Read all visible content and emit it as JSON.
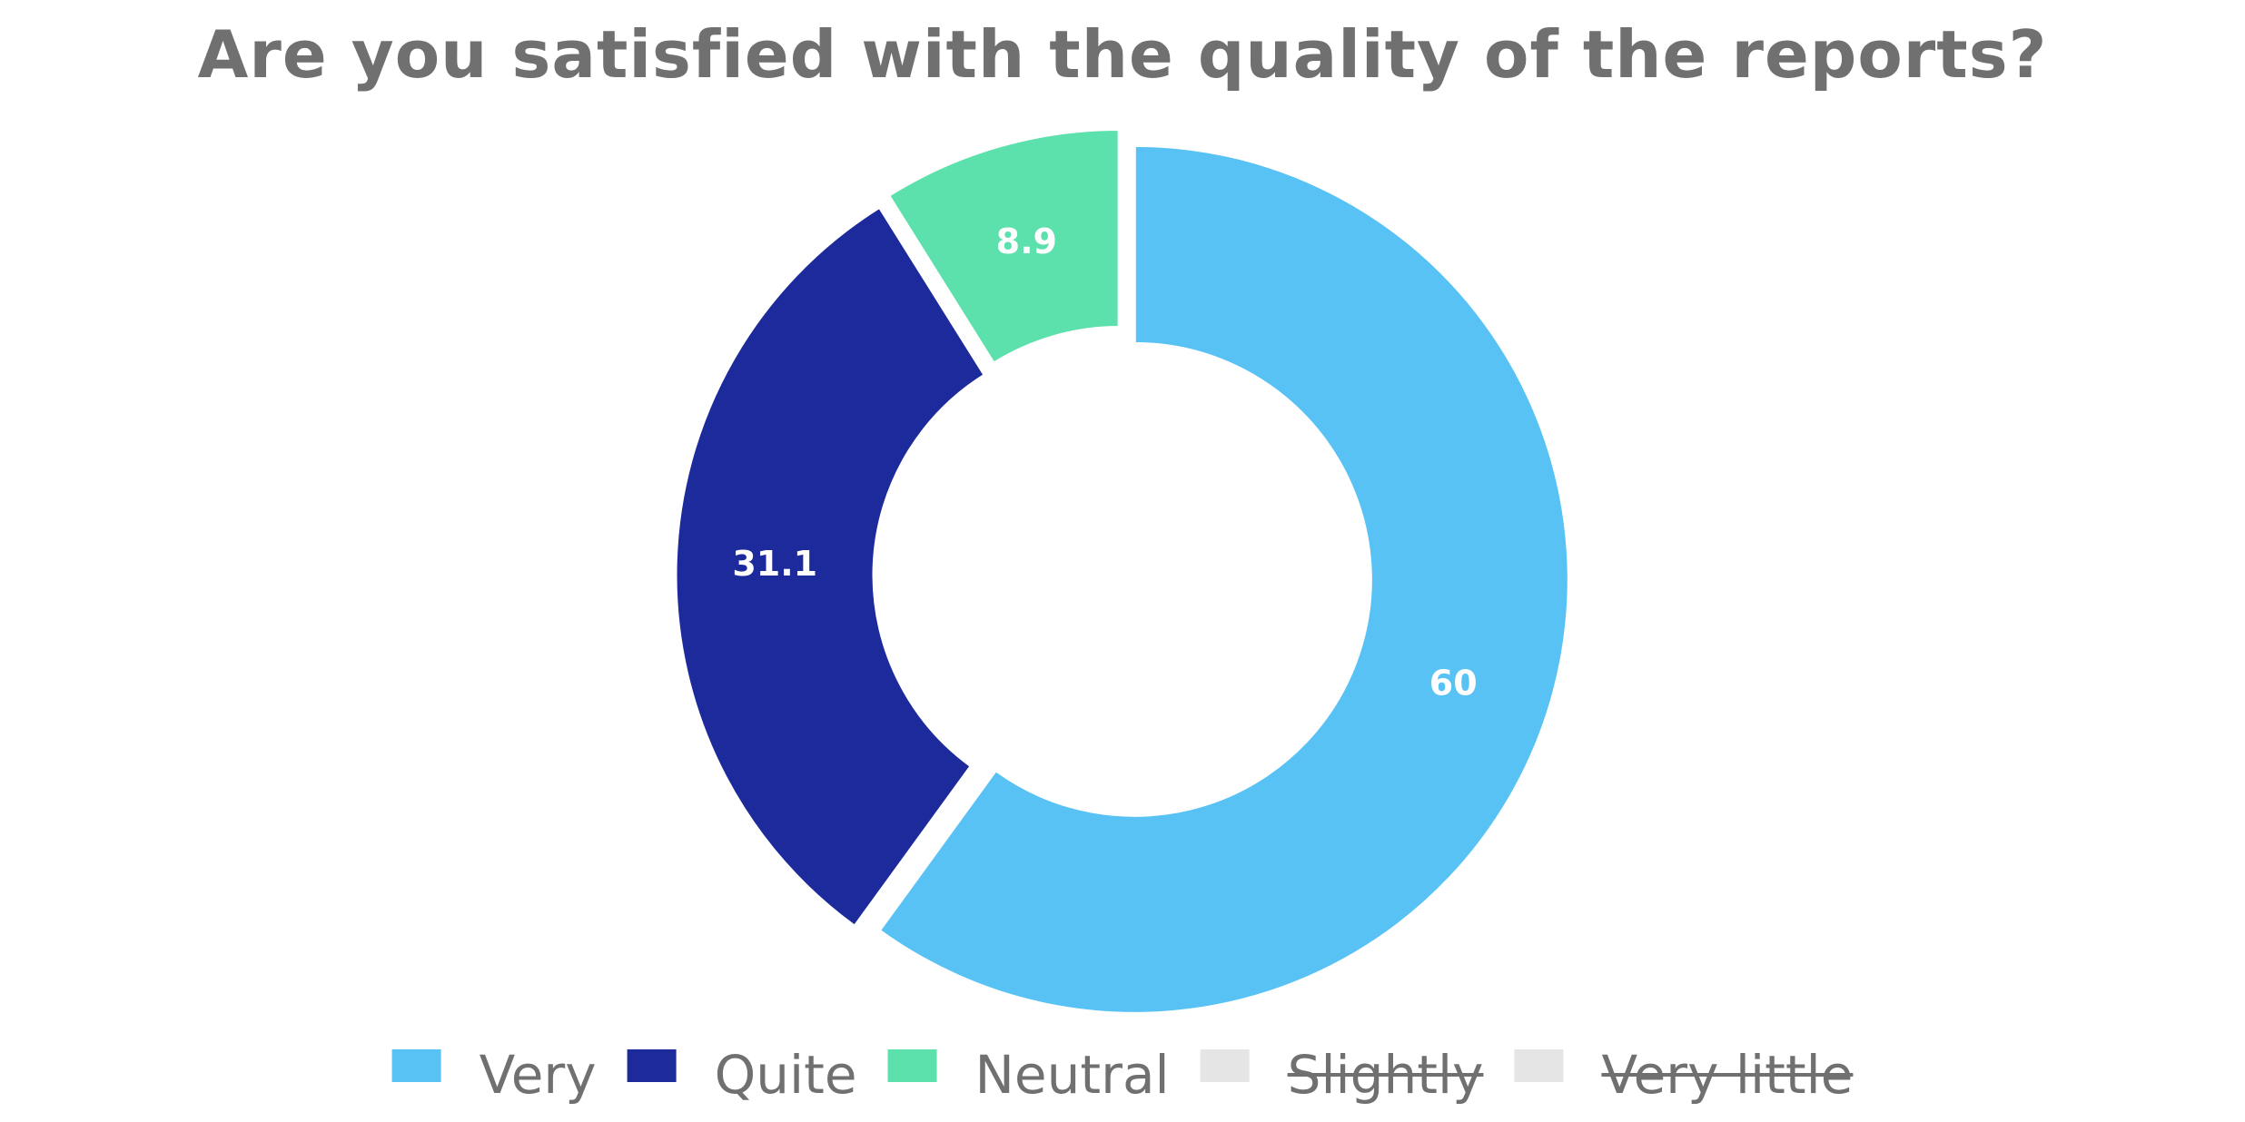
{
  "chart_data": {
    "type": "pie",
    "variant": "donut",
    "title": "Are you satisfied with the quality of the reports?",
    "series": [
      {
        "name": "Very",
        "value": 60,
        "label": "60",
        "color": "#58C2F5",
        "visible": true
      },
      {
        "name": "Quite",
        "value": 31.1,
        "label": "31.1",
        "color": "#1C2A9C",
        "visible": true
      },
      {
        "name": "Neutral",
        "value": 8.9,
        "label": "8.9",
        "color": "#5CE0AC",
        "visible": true
      },
      {
        "name": "Slightly",
        "value": 0,
        "label": "",
        "color": "#E5E5E5",
        "visible": false
      },
      {
        "name": "Very little",
        "value": 0,
        "label": "",
        "color": "#E5E5E5",
        "visible": false
      }
    ],
    "legend": "bottom",
    "label_color": "#FFFFFF",
    "title_color": "#707070"
  }
}
